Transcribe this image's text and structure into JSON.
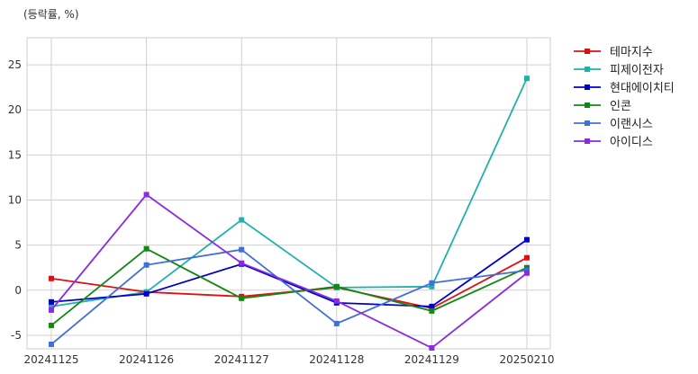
{
  "chart_data": {
    "type": "line",
    "unit_label": "(등락률, %)",
    "x": [
      "20241125",
      "20241126",
      "20241127",
      "20241128",
      "20241129",
      "20250210"
    ],
    "ylim": [
      -6.5,
      28
    ],
    "yticks": [
      -5,
      0,
      5,
      10,
      15,
      20,
      25
    ],
    "grid": true,
    "legend_position": "right",
    "series": [
      {
        "name": "테마지수",
        "color": "#e01010",
        "values": [
          1.3,
          -0.2,
          -0.7,
          0.3,
          -2.0,
          3.6
        ]
      },
      {
        "name": "피제이전자",
        "color": "#20b2aa",
        "values": [
          -1.8,
          -0.2,
          7.8,
          0.3,
          0.4,
          23.5
        ]
      },
      {
        "name": "현대에이치티",
        "color": "#0000cc",
        "values": [
          -1.3,
          -0.4,
          2.9,
          -1.4,
          -1.8,
          5.6
        ]
      },
      {
        "name": "인콘",
        "color": "#118811",
        "values": [
          -3.9,
          4.6,
          -0.9,
          0.4,
          -2.3,
          2.5
        ]
      },
      {
        "name": "이랜시스",
        "color": "#3f6fd8",
        "values": [
          -6.0,
          2.8,
          4.5,
          -3.7,
          0.8,
          2.2
        ]
      },
      {
        "name": "아이디스",
        "color": "#8a2be2",
        "values": [
          -2.2,
          10.6,
          3.0,
          -1.2,
          -6.4,
          1.9
        ]
      }
    ]
  }
}
